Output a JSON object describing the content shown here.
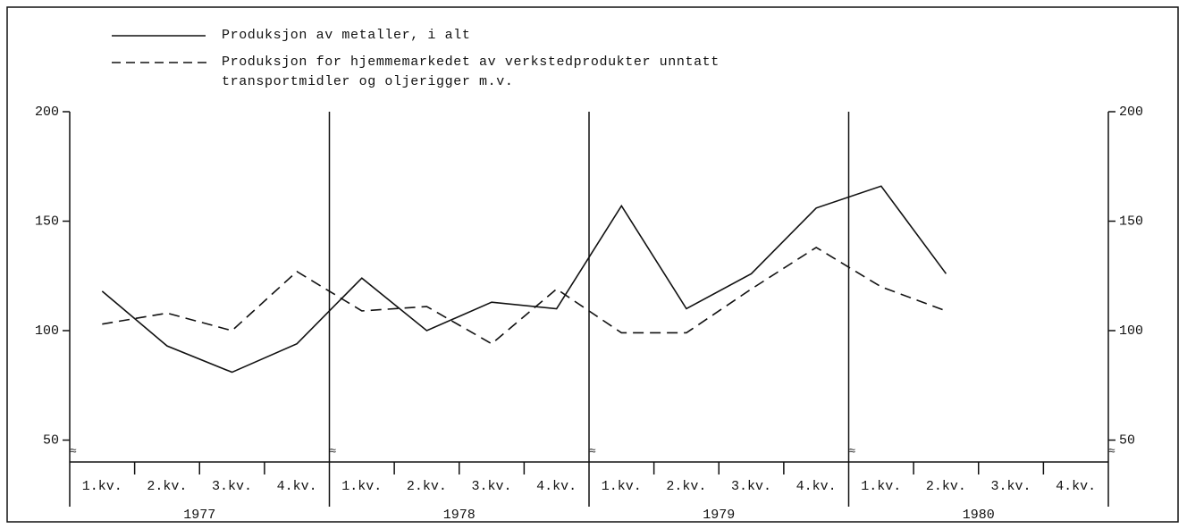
{
  "chart_data": {
    "type": "line",
    "categories": [
      "1.kv.",
      "2.kv.",
      "3.kv.",
      "4.kv.",
      "1.kv.",
      "2.kv.",
      "3.kv.",
      "4.kv.",
      "1.kv.",
      "2.kv.",
      "3.kv.",
      "4.kv.",
      "1.kv.",
      "2.kv.",
      "3.kv.",
      "4.kv."
    ],
    "years": [
      "1977",
      "1978",
      "1979",
      "1980"
    ],
    "series": [
      {
        "name": "Produksjon av metaller, i alt",
        "color": "#111111",
        "style": "solid",
        "values": [
          118,
          93,
          81,
          94,
          124,
          100,
          113,
          110,
          157,
          110,
          126,
          156,
          166,
          126,
          null,
          null
        ]
      },
      {
        "name": "Produksjon for hjemmemarkedet av verkstedprodukter unntatt transportmidler og oljerigger m.v.",
        "color": "#111111",
        "style": "dashed",
        "values": [
          103,
          108,
          100,
          127,
          109,
          111,
          94,
          119,
          99,
          99,
          119,
          138,
          120,
          109,
          null,
          null
        ]
      }
    ],
    "ylim": [
      40,
      200
    ],
    "yticks": [
      50,
      100,
      150,
      200
    ],
    "y2lim": [
      40,
      200
    ],
    "y2ticks": [
      50,
      100,
      150,
      200
    ]
  }
}
